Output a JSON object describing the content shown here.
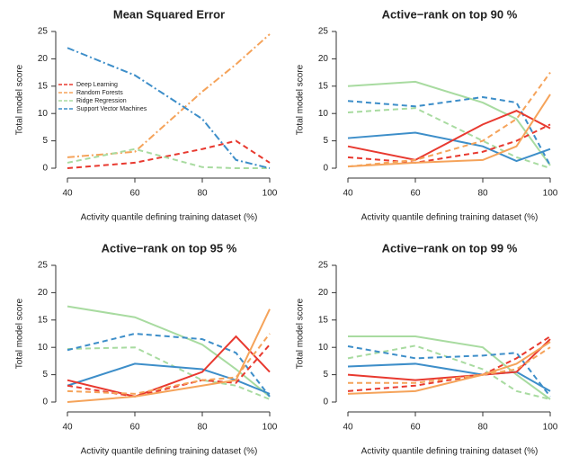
{
  "chart_data": [
    {
      "type": "line",
      "title": "Mean Squared Error",
      "x_label": "Activity quantile defining training dataset (%)",
      "y_label": "Total model score",
      "x": [
        40,
        60,
        80,
        90,
        100
      ],
      "xlim": [
        40,
        100
      ],
      "xticks": [
        40,
        60,
        80,
        100
      ],
      "ylim": [
        0,
        25
      ],
      "yticks": [
        0,
        5,
        10,
        15,
        20,
        25
      ],
      "legend": "left",
      "series": [
        {
          "name": "Deep Learning",
          "color": "#e8392f",
          "dash": "dashed",
          "values": [
            0,
            1,
            3.5,
            5,
            1
          ]
        },
        {
          "name": "Random Forests",
          "color": "#f5a35a",
          "dash": "dashdot",
          "values": [
            2,
            3,
            14,
            19,
            24.5
          ]
        },
        {
          "name": "Ridge Regression",
          "color": "#a8dba0",
          "dash": "dashed",
          "values": [
            1,
            3.5,
            0.2,
            0,
            0
          ]
        },
        {
          "name": "Support Vector Machines",
          "color": "#3d8ec9",
          "dash": "dashdot",
          "values": [
            22,
            17,
            9,
            1.5,
            0
          ]
        }
      ]
    },
    {
      "type": "line",
      "title": "Active−rank on top  90 %",
      "x_label": "Activity quantile defining training dataset (%)",
      "y_label": "Total model score",
      "x": [
        40,
        60,
        80,
        90,
        100
      ],
      "xlim": [
        40,
        100
      ],
      "xticks": [
        40,
        60,
        80,
        100
      ],
      "ylim": [
        0,
        25
      ],
      "yticks": [
        0,
        5,
        10,
        15,
        20,
        25
      ],
      "series": [
        {
          "color": "#a8dba0",
          "dash": "solid",
          "values": [
            15,
            15.8,
            12,
            9,
            0.5
          ]
        },
        {
          "color": "#a8dba0",
          "dash": "dashed",
          "values": [
            10.2,
            11,
            5,
            2,
            0
          ]
        },
        {
          "color": "#3d8ec9",
          "dash": "dashed",
          "values": [
            12.3,
            11.3,
            13,
            12,
            0.5
          ]
        },
        {
          "color": "#3d8ec9",
          "dash": "solid",
          "values": [
            5.5,
            6.5,
            4,
            1.3,
            3.5
          ]
        },
        {
          "color": "#e8392f",
          "dash": "solid",
          "values": [
            4,
            1.5,
            8,
            10.5,
            7.3
          ]
        },
        {
          "color": "#e8392f",
          "dash": "dashed",
          "values": [
            2,
            1,
            3,
            5,
            8
          ]
        },
        {
          "color": "#f5a35a",
          "dash": "dashed",
          "values": [
            0.3,
            1.5,
            5,
            9,
            17.5
          ]
        },
        {
          "color": "#f5a35a",
          "dash": "solid",
          "values": [
            0.3,
            1,
            1.5,
            4,
            13.5
          ]
        }
      ]
    },
    {
      "type": "line",
      "title": "Active−rank on top  95 %",
      "x_label": "Activity quantile defining training dataset (%)",
      "y_label": "Total model score",
      "x": [
        40,
        60,
        80,
        90,
        100
      ],
      "xlim": [
        40,
        100
      ],
      "xticks": [
        40,
        60,
        80,
        100
      ],
      "ylim": [
        0,
        25
      ],
      "yticks": [
        0,
        5,
        10,
        15,
        20,
        25
      ],
      "series": [
        {
          "color": "#a8dba0",
          "dash": "solid",
          "values": [
            17.5,
            15.5,
            10.5,
            6,
            1
          ]
        },
        {
          "color": "#a8dba0",
          "dash": "dashed",
          "values": [
            9.7,
            10,
            4,
            3,
            0.5
          ]
        },
        {
          "color": "#3d8ec9",
          "dash": "dashed",
          "values": [
            9.5,
            12.5,
            11.5,
            9,
            1
          ]
        },
        {
          "color": "#3d8ec9",
          "dash": "solid",
          "values": [
            3,
            7,
            6,
            4,
            1.5
          ]
        },
        {
          "color": "#e8392f",
          "dash": "solid",
          "values": [
            4,
            1,
            5.5,
            12,
            5.5
          ]
        },
        {
          "color": "#e8392f",
          "dash": "dashed",
          "values": [
            3,
            1,
            4,
            3.5,
            10.5
          ]
        },
        {
          "color": "#f5a35a",
          "dash": "solid",
          "values": [
            0,
            1,
            3,
            4,
            17
          ]
        },
        {
          "color": "#f5a35a",
          "dash": "dashed",
          "values": [
            2,
            1.5,
            4,
            4.5,
            12.5
          ]
        }
      ]
    },
    {
      "type": "line",
      "title": "Active−rank on top  99 %",
      "x_label": "Activity quantile defining training dataset (%)",
      "y_label": "Total model score",
      "x": [
        40,
        60,
        80,
        90,
        100
      ],
      "xlim": [
        40,
        100
      ],
      "xticks": [
        40,
        60,
        80,
        100
      ],
      "ylim": [
        0,
        25
      ],
      "yticks": [
        0,
        5,
        10,
        15,
        20,
        25
      ],
      "series": [
        {
          "color": "#a8dba0",
          "dash": "solid",
          "values": [
            12,
            12,
            10,
            5,
            0.5
          ]
        },
        {
          "color": "#a8dba0",
          "dash": "dashed",
          "values": [
            8,
            10.3,
            6,
            2,
            0.5
          ]
        },
        {
          "color": "#3d8ec9",
          "dash": "dashed",
          "values": [
            10.2,
            8,
            8.5,
            9,
            1
          ]
        },
        {
          "color": "#3d8ec9",
          "dash": "solid",
          "values": [
            6.5,
            7,
            5,
            5.5,
            2
          ]
        },
        {
          "color": "#e8392f",
          "dash": "solid",
          "values": [
            5,
            4,
            5,
            5.5,
            11.5
          ]
        },
        {
          "color": "#e8392f",
          "dash": "dashed",
          "values": [
            2,
            3,
            5,
            8,
            12
          ]
        },
        {
          "color": "#f5a35a",
          "dash": "solid",
          "values": [
            1.5,
            2,
            5,
            7,
            11
          ]
        },
        {
          "color": "#f5a35a",
          "dash": "dashed",
          "values": [
            3.5,
            3.5,
            5,
            6,
            10
          ]
        }
      ]
    }
  ]
}
